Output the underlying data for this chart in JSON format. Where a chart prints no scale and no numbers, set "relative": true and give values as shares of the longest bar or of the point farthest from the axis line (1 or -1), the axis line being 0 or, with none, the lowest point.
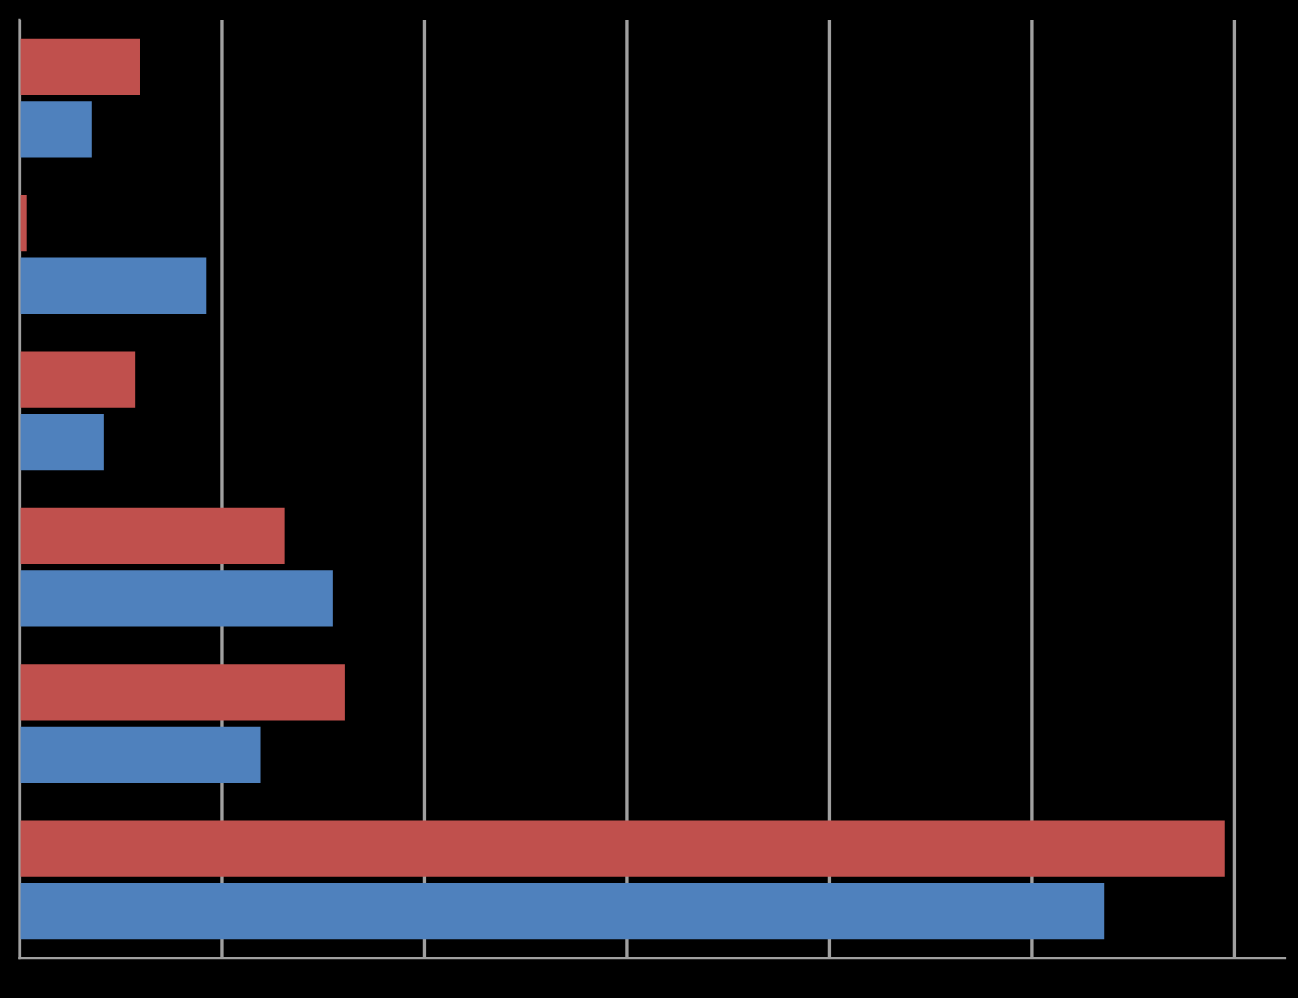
{
  "chart_data": {
    "type": "bar",
    "orientation": "horizontal",
    "relative": true,
    "grid": "x",
    "tick_labels": false,
    "categories": [
      null,
      null,
      null,
      null,
      null,
      null
    ],
    "series": [
      {
        "color": "#c0504d",
        "values": [
          0.1,
          0.006,
          0.096,
          0.22,
          0.27,
          1.0
        ]
      },
      {
        "color": "#4f81bd",
        "values": [
          0.06,
          0.155,
          0.07,
          0.26,
          0.2,
          0.9
        ]
      }
    ]
  }
}
